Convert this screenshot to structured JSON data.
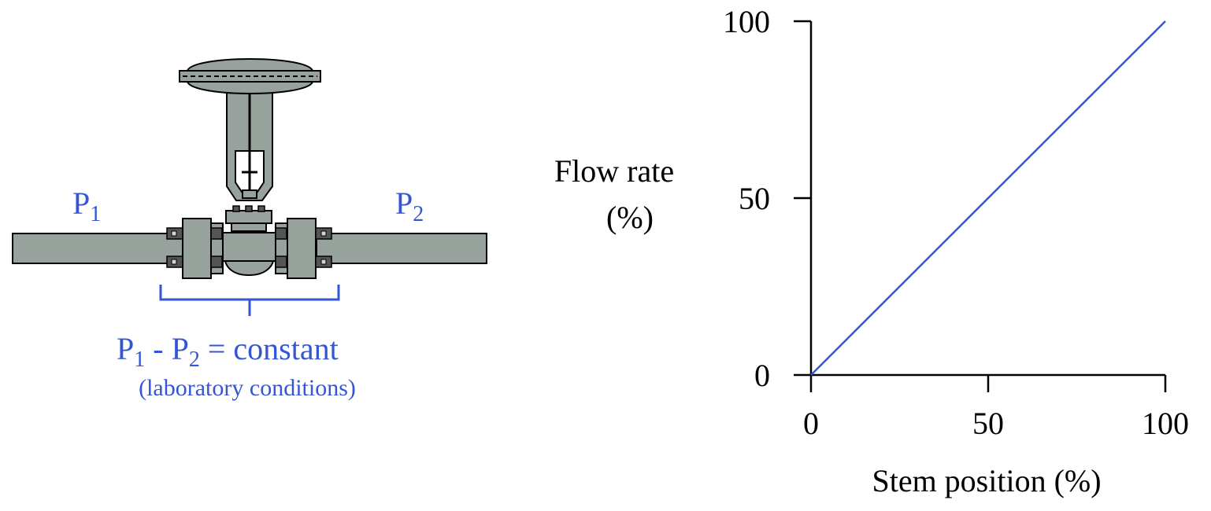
{
  "diagram": {
    "p1_label": "P",
    "p1_sub": "1",
    "p2_label": "P",
    "p2_sub": "2",
    "eq_p1": "P",
    "eq_sub1": "1",
    "eq_minus": " - P",
    "eq_sub2": "2",
    "eq_rest": " = constant",
    "conditions": "(laboratory conditions)",
    "label_color": "#3355d6",
    "metal_color": "#98a29c"
  },
  "chart_data": {
    "type": "line",
    "xlabel": "Stem position (%)",
    "ylabel_line1": "Flow rate",
    "ylabel_line2": "(%)",
    "xlim": [
      0,
      100
    ],
    "ylim": [
      0,
      100
    ],
    "x_ticks": [
      "0",
      "50",
      "100"
    ],
    "y_ticks": [
      "0",
      "50",
      "100"
    ],
    "grid": false,
    "series": [
      {
        "x": [
          0,
          100
        ],
        "y": [
          0,
          100
        ],
        "color": "#3355d6"
      }
    ]
  }
}
